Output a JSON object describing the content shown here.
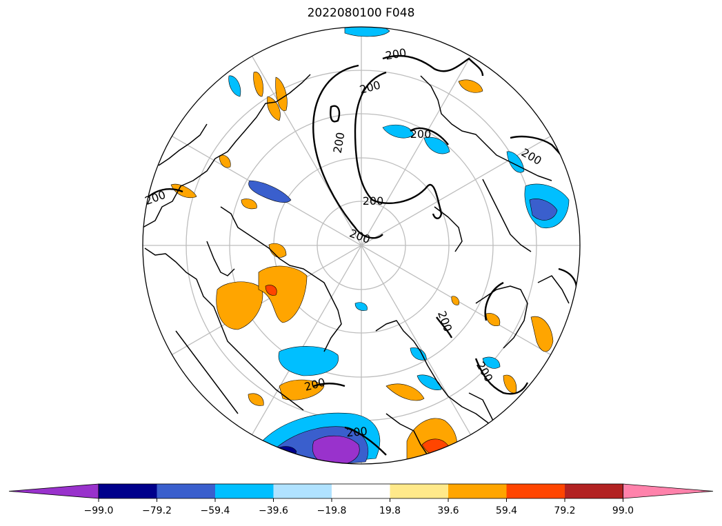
{
  "title": "2022080100 F048",
  "contour_value_label": "200",
  "colorbar": {
    "colors": [
      "#9932cc",
      "#00008b",
      "#3a5fcd",
      "#00bfff",
      "#b0e2ff",
      "#ffffff",
      "#ffe98a",
      "#ffa500",
      "#ff4500",
      "#b22222",
      "#ff82ab"
    ],
    "tick_labels": [
      "−99.0",
      "−79.2",
      "−59.4",
      "−39.6",
      "−19.8",
      "19.8",
      "39.6",
      "59.4",
      "79.2",
      "99.0"
    ]
  },
  "map": {
    "projection": "north-polar-stereographic",
    "contour_color": "#000000",
    "grid_color": "#bdbdbd",
    "coastline_color": "#000000"
  }
}
